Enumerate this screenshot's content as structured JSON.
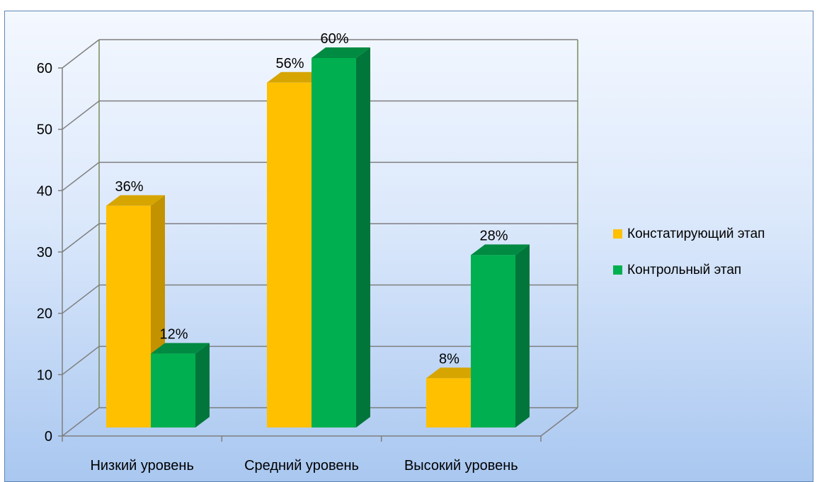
{
  "chart_data": {
    "type": "bar",
    "categories": [
      "Низкий уровень",
      "Средний уровень",
      "Высокий уровень"
    ],
    "series": [
      {
        "name": "Констатирующий этап",
        "values": [
          36,
          56,
          8
        ],
        "labels": [
          "36%",
          "56%",
          "8%"
        ],
        "color": "#ffc000",
        "side_color": "#c29200",
        "top_color": "#d7a500"
      },
      {
        "name": "Контрольный этап",
        "values": [
          12,
          60,
          28
        ],
        "labels": [
          "12%",
          "60%",
          "28%"
        ],
        "color": "#00b050",
        "side_color": "#00763a",
        "top_color": "#008a42"
      }
    ],
    "y_ticks": [
      "0",
      "10",
      "20",
      "30",
      "40",
      "50",
      "60"
    ],
    "ylim": [
      0,
      60
    ],
    "grid": true,
    "legend_position": "right",
    "style": "3d-clustered-column"
  }
}
